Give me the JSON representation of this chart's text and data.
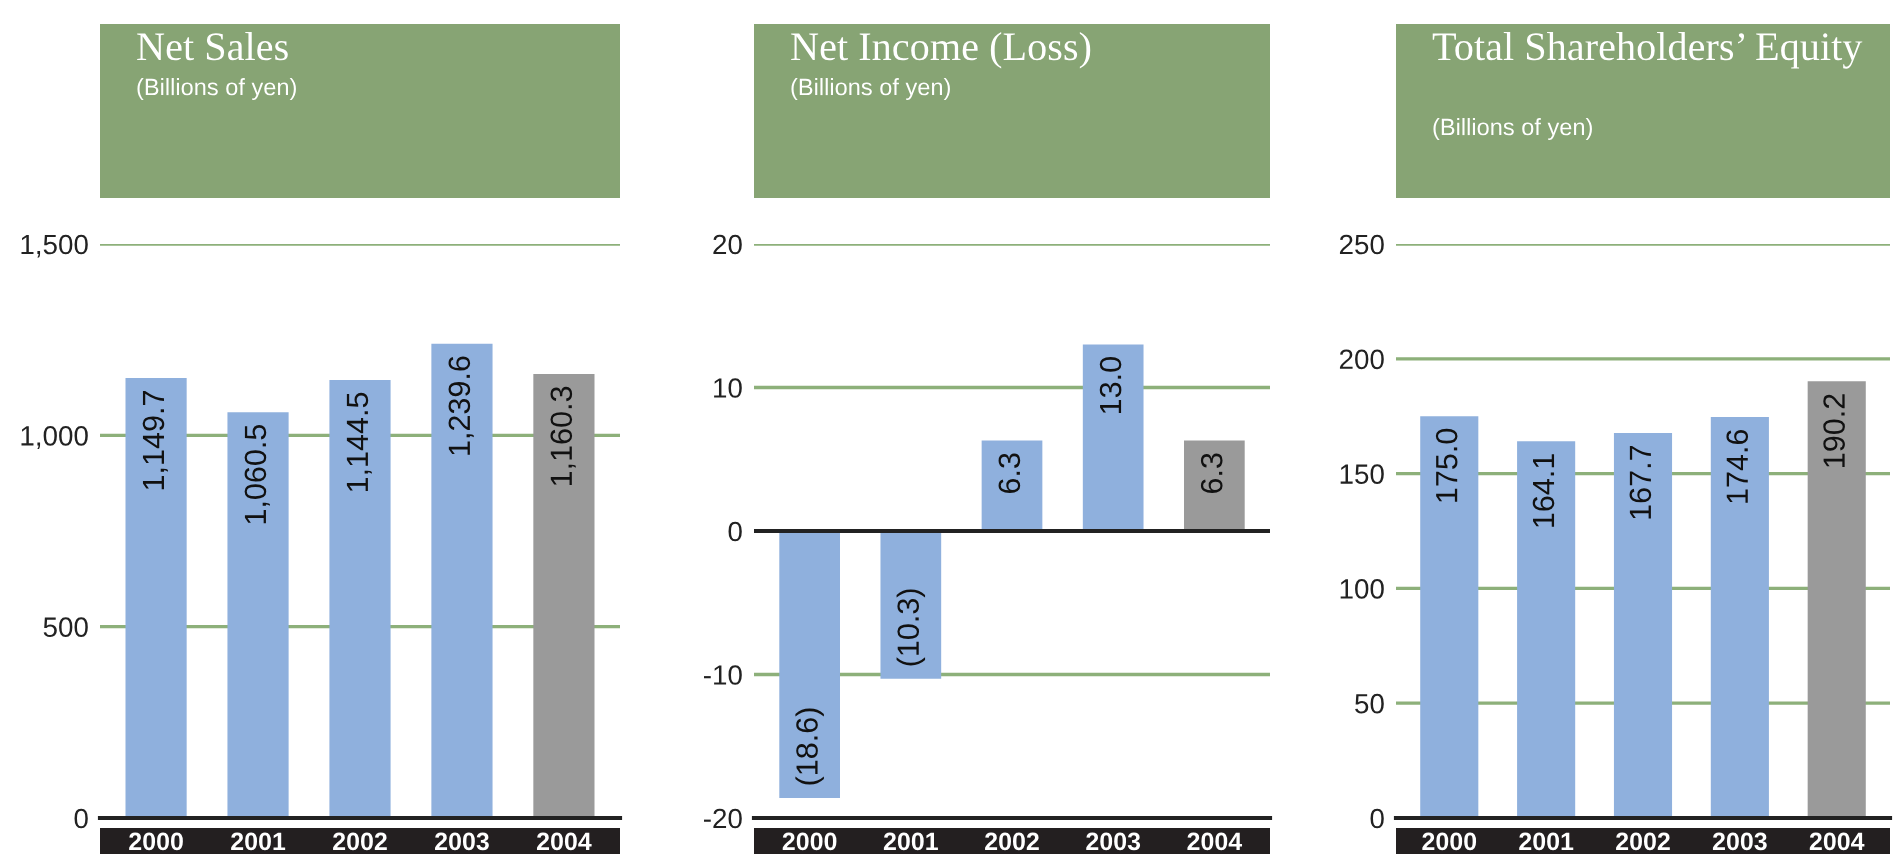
{
  "chart_data": [
    {
      "type": "bar",
      "title": "Net Sales",
      "subtitle": "(Billions of yen)",
      "categories": [
        "2000",
        "2001",
        "2002",
        "2003",
        "2004"
      ],
      "values": [
        1149.7,
        1060.5,
        1144.5,
        1239.6,
        1160.3
      ],
      "colors": [
        "#8fb0dd",
        "#8fb0dd",
        "#8fb0dd",
        "#8fb0dd",
        "#9a9a9a"
      ],
      "value_labels": [
        "1,149.7",
        "1,060.5",
        "1,144.5",
        "1,239.6",
        "1,160.3"
      ],
      "ylim": [
        0,
        1500
      ],
      "yticks": [
        0,
        500,
        {
          "value": 1000,
          "label": "1,000"
        },
        {
          "value": 1500,
          "label": "1,500"
        }
      ],
      "grid": "y",
      "legend": false
    },
    {
      "type": "bar",
      "title": "Net Income (Loss)",
      "subtitle": "(Billions of yen)",
      "categories": [
        "2000",
        "2001",
        "2002",
        "2003",
        "2004"
      ],
      "values": [
        -18.6,
        -10.3,
        6.3,
        13.0,
        6.3
      ],
      "colors": [
        "#8fb0dd",
        "#8fb0dd",
        "#8fb0dd",
        "#8fb0dd",
        "#9a9a9a"
      ],
      "value_labels": [
        "(18.6)",
        "(10.3)",
        "6.3",
        "13.0",
        "6.3"
      ],
      "ylim": [
        -20,
        20
      ],
      "yticks": [
        -20,
        -10,
        0,
        10,
        20
      ],
      "ref_lines": [
        {
          "axis": "y",
          "value": 0,
          "color": "#222222"
        }
      ],
      "grid": "y",
      "legend": false
    },
    {
      "type": "bar",
      "title": "Total Shareholders’ Equity",
      "subtitle": "(Billions of yen)",
      "categories": [
        "2000",
        "2001",
        "2002",
        "2003",
        "2004"
      ],
      "values": [
        175.0,
        164.1,
        167.7,
        174.6,
        190.2
      ],
      "colors": [
        "#8fb0dd",
        "#8fb0dd",
        "#8fb0dd",
        "#8fb0dd",
        "#9a9a9a"
      ],
      "value_labels": [
        "175.0",
        "164.1",
        "167.7",
        "174.6",
        "190.2"
      ],
      "ylim": [
        0,
        250
      ],
      "yticks": [
        0,
        50,
        100,
        150,
        200,
        250
      ],
      "grid": "y",
      "legend": false
    }
  ]
}
